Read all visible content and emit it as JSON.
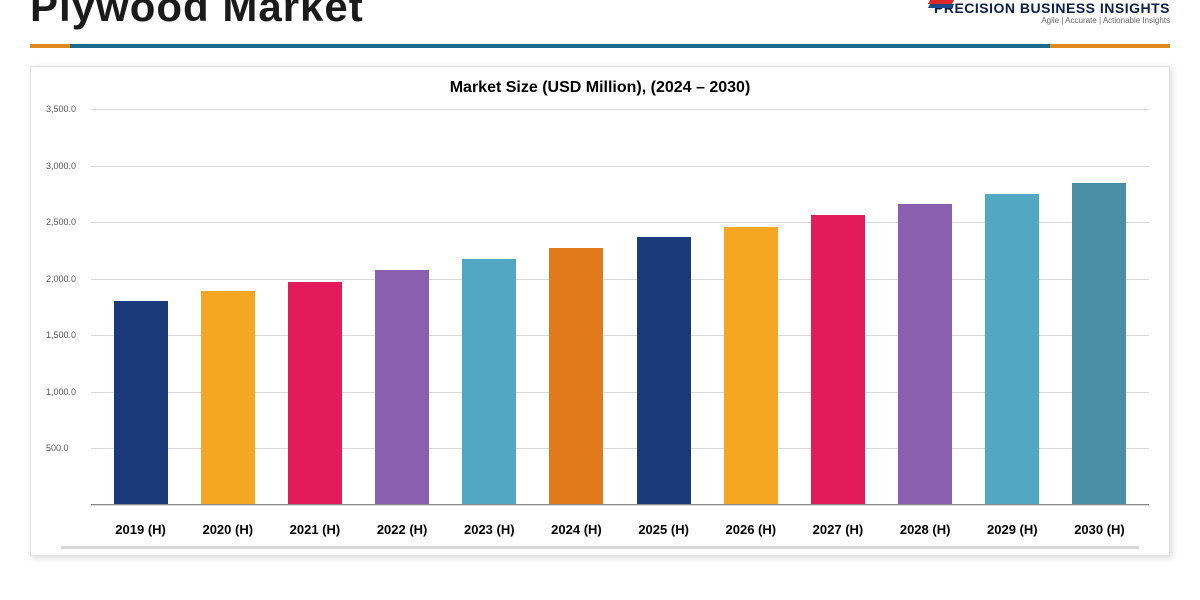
{
  "header": {
    "title": "Plywood Market",
    "logo_text": "PRECISION BUSINESS INSIGHTS",
    "logo_tagline": "Agile | Accurate | Actionable Insights",
    "logo_stripe_colors": [
      "#e02828",
      "#1a4b8c",
      "#e02828",
      "#1a4b8c"
    ]
  },
  "divider": {
    "seg1_color": "#e08a1e",
    "seg2_color": "#1a6b8c",
    "seg3_color": "#e08a1e"
  },
  "chart": {
    "type": "bar",
    "title": "Market Size (USD Million), (2024 – 2030)",
    "title_fontsize": 16,
    "background_color": "#ffffff",
    "grid_color": "#d9d9d9",
    "ylim": [
      0,
      3500
    ],
    "ytick_step": 500,
    "yticks": [
      {
        "v": 0,
        "label": ""
      },
      {
        "v": 500,
        "label": "500.0"
      },
      {
        "v": 1000,
        "label": "1,000.0"
      },
      {
        "v": 1500,
        "label": "1,500.0"
      },
      {
        "v": 2000,
        "label": "2,000.0"
      },
      {
        "v": 2500,
        "label": "2,500.0"
      },
      {
        "v": 3000,
        "label": "3,000.0"
      },
      {
        "v": 3500,
        "label": "3,500.0"
      }
    ],
    "categories": [
      "2019 (H)",
      "2020 (H)",
      "2021 (H)",
      "2022 (H)",
      "2023 (H)",
      "2024 (H)",
      "2025 (H)",
      "2026 (H)",
      "2027 (H)",
      "2028 (H)",
      "2029 (H)",
      "2030 (H)"
    ],
    "values": [
      1800,
      1890,
      1970,
      2080,
      2170,
      2270,
      2370,
      2460,
      2560,
      2660,
      2750,
      2850
    ],
    "bar_colors": [
      "#1a3a7a",
      "#f5a623",
      "#e31b5a",
      "#8a5fb0",
      "#52a8c2",
      "#e07a1a",
      "#1a3a7a",
      "#f5a623",
      "#e31b5a",
      "#8a5fb0",
      "#52a8c2",
      "#4a8fa3"
    ],
    "bar_width": 0.62,
    "xlabel_fontsize": 13,
    "ylabel_fontsize": 9
  },
  "bottom_divider": {
    "seg1_color": "#1a6b8c",
    "seg2_color": "#e08a1e",
    "visible_portion": 0.35
  }
}
